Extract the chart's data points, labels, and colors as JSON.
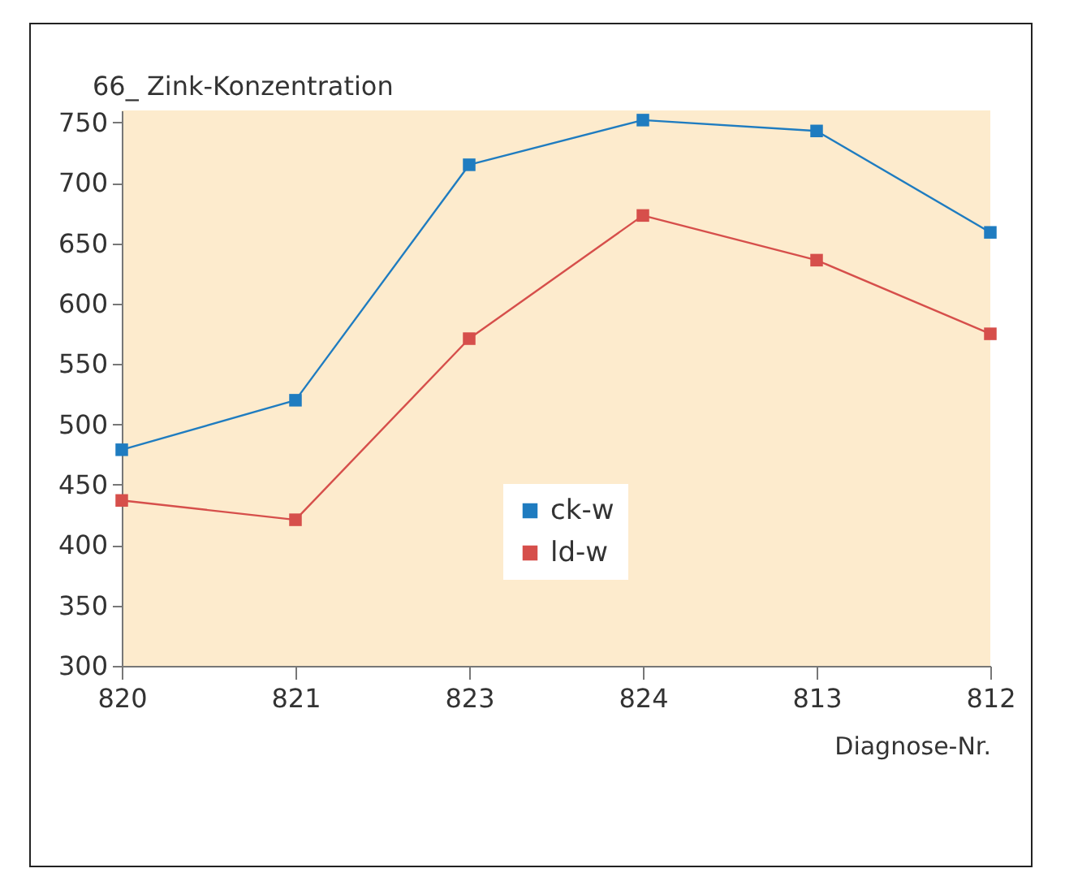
{
  "chart_data": {
    "type": "line",
    "title": "66_ Zink-Konzentration",
    "xlabel": "Diagnose-Nr.",
    "categories": [
      "820",
      "821",
      "823",
      "824",
      "813",
      "812"
    ],
    "series": [
      {
        "name": "ck-w",
        "color": "#1f7cc0",
        "values": [
          479,
          520,
          715,
          752,
          743,
          659
        ]
      },
      {
        "name": "ld-w",
        "color": "#d64f4b",
        "values": [
          437,
          421,
          571,
          673,
          636,
          575
        ]
      }
    ],
    "ylim": [
      300,
      760
    ],
    "yticks": [
      300,
      350,
      400,
      450,
      500,
      550,
      600,
      650,
      700,
      750
    ],
    "grid": false,
    "legend": "bottom",
    "marker": "square",
    "line_style": "solid"
  }
}
